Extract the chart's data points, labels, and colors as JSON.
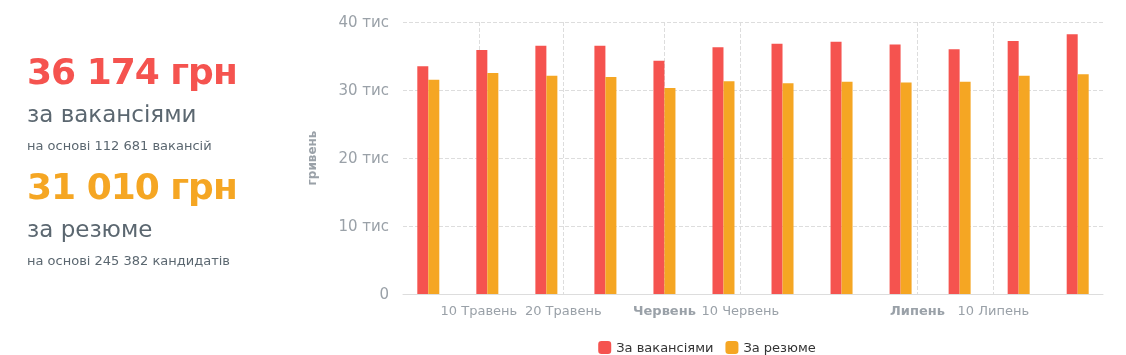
{
  "chart_data": [
    {
      "type": "other",
      "annotations": [
        "36 174 грн",
        "за вакансіями",
        "на основі 112 681 вакансій",
        "31 010 грн",
        "за резюме",
        "на основі 245 382 кандидатів"
      ]
    },
    {
      "type": "bar",
      "ylabel": "гривень",
      "x": [
        "--05-04",
        "--05-11",
        "--05-18",
        "--05-25",
        "--06-01",
        "--06-08",
        "--06-15",
        "--06-22",
        "--06-29",
        "--07-06",
        "--07-13",
        "--07-20"
      ],
      "series": [
        {
          "name": "За вакансіями",
          "color": "#f5534f",
          "values": [
            33.5,
            35.9,
            36.5,
            36.5,
            34.3,
            36.3,
            36.8,
            37.1,
            36.7,
            36.0,
            37.2,
            38.2
          ]
        },
        {
          "name": "За резюме",
          "color": "#f5a623",
          "values": [
            31.5,
            32.5,
            32.1,
            31.9,
            30.3,
            31.3,
            31.0,
            31.2,
            31.1,
            31.2,
            32.1,
            32.3
          ]
        }
      ],
      "xlim": [
        "--05-01",
        "--07-23"
      ],
      "xticks": [
        {
          "value": "--05-10",
          "label": "10 Травень"
        },
        {
          "value": "--05-20",
          "label": "20 Травень"
        },
        {
          "value": "--06-01",
          "label": "Червень"
        },
        {
          "value": "--06-10",
          "label": "10 Червень"
        },
        {
          "value": "--07-01",
          "label": "Липень"
        },
        {
          "value": "--07-10",
          "label": "10 Липень"
        }
      ],
      "ylim": [
        0,
        40
      ],
      "yticks": [
        0,
        {
          "value": 10,
          "label": "10 тис"
        },
        {
          "value": 20,
          "label": "20 тис"
        },
        {
          "value": 30,
          "label": "30 тис"
        },
        {
          "value": 40,
          "label": "40 тис"
        }
      ],
      "grid": true,
      "legend": "bottom"
    }
  ]
}
